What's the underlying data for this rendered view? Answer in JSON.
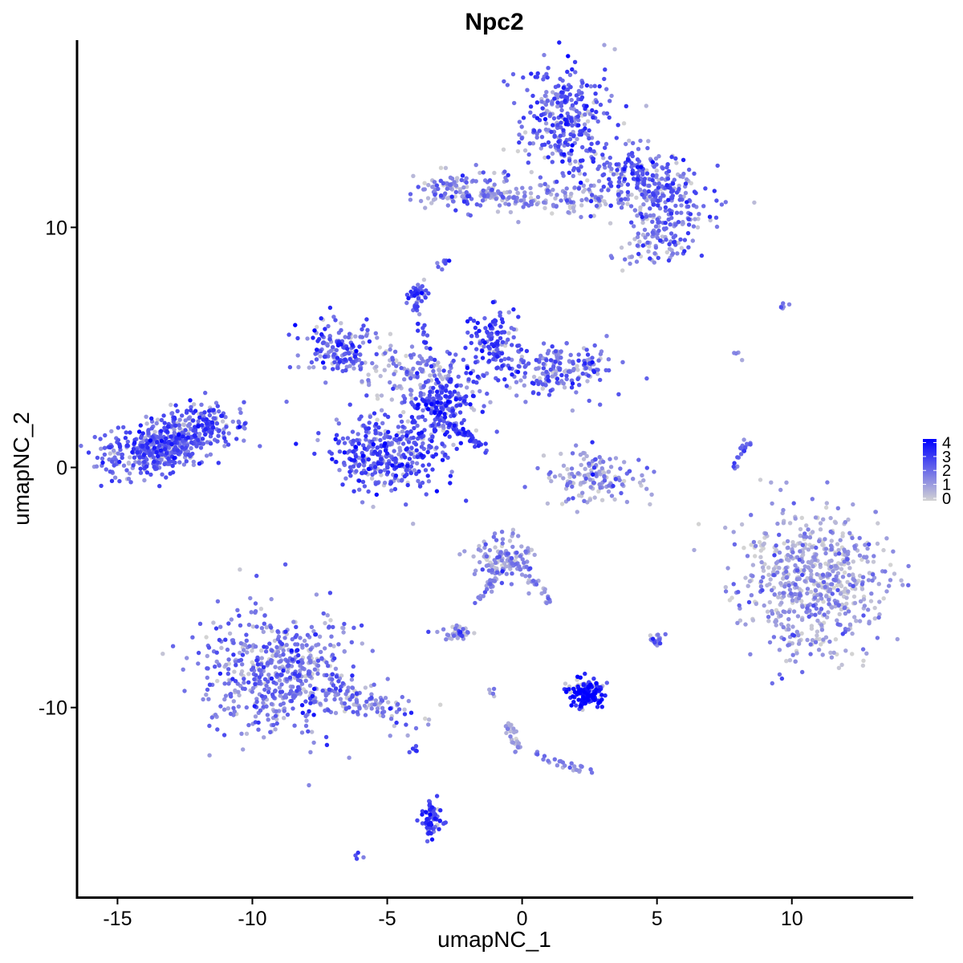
{
  "chart_data": {
    "type": "scatter",
    "title": "Npc2",
    "xlabel": "umapNC_1",
    "ylabel": "umapNC_2",
    "xlim": [
      -16.5,
      14.5
    ],
    "ylim": [
      -17.9,
      17.8
    ],
    "xticks": [
      -15,
      -10,
      -5,
      0,
      5,
      10
    ],
    "yticks": [
      -10,
      0,
      10
    ],
    "tick_labels_x": [
      "-15",
      "-10",
      "-5",
      "0",
      "5",
      "10"
    ],
    "tick_labels_y": [
      "-10",
      "0",
      "10"
    ],
    "color_scale": {
      "low": "#d3d3d3",
      "high": "#0000ff",
      "min": 0,
      "max": 4.2,
      "breaks": [
        0,
        1,
        2,
        3,
        4
      ],
      "labels": [
        "0",
        "1",
        "2",
        "3",
        "4"
      ]
    },
    "grid": false,
    "legend": "right",
    "clusters": [
      {
        "label": "cluster-left",
        "cx": -13.2,
        "cy": 1.0,
        "sx": 1.2,
        "sy": 0.55,
        "rot": 18,
        "n": 520,
        "mean": 2.3
      },
      {
        "label": "cluster-left-tail",
        "cx": -11.7,
        "cy": 1.9,
        "sx": 0.5,
        "sy": 0.4,
        "rot": 0,
        "n": 60,
        "mean": 2.4
      },
      {
        "label": "cluster-top-main",
        "cx": 1.6,
        "cy": 14.5,
        "sx": 0.9,
        "sy": 1.2,
        "rot": 0,
        "n": 300,
        "mean": 2.3
      },
      {
        "label": "cluster-top-right",
        "cx": 4.5,
        "cy": 11.8,
        "sx": 1.3,
        "sy": 0.7,
        "rot": -15,
        "n": 300,
        "mean": 2.2
      },
      {
        "label": "cluster-top-right-lobe",
        "cx": 5.3,
        "cy": 9.8,
        "sx": 0.9,
        "sy": 0.5,
        "rot": 30,
        "n": 120,
        "mean": 1.8
      },
      {
        "label": "cluster-top-left-arm",
        "cx": -2.3,
        "cy": 11.5,
        "sx": 0.9,
        "sy": 0.4,
        "rot": 0,
        "n": 120,
        "mean": 1.6
      },
      {
        "label": "cluster-top-bridge",
        "cx": 1.2,
        "cy": 11.2,
        "sx": 1.8,
        "sy": 0.35,
        "rot": -3,
        "n": 120,
        "mean": 1.1
      },
      {
        "label": "cluster-center-left-arm",
        "cx": -6.8,
        "cy": 5.0,
        "sx": 0.7,
        "sy": 0.6,
        "rot": 0,
        "n": 140,
        "mean": 2.3
      },
      {
        "label": "cluster-center-mid",
        "cx": -4.2,
        "cy": 4.0,
        "sx": 1.0,
        "sy": 0.5,
        "rot": -10,
        "n": 130,
        "mean": 1.2
      },
      {
        "label": "cluster-center-hub",
        "cx": -3.0,
        "cy": 2.6,
        "sx": 0.7,
        "sy": 0.6,
        "rot": 0,
        "n": 200,
        "mean": 2.7
      },
      {
        "label": "cluster-center-lower",
        "cx": -5.0,
        "cy": 0.6,
        "sx": 1.1,
        "sy": 0.85,
        "rot": 0,
        "n": 380,
        "mean": 2.5
      },
      {
        "label": "cluster-center-upper",
        "cx": -1.1,
        "cy": 5.2,
        "sx": 0.6,
        "sy": 0.7,
        "rot": 0,
        "n": 130,
        "mean": 2.6
      },
      {
        "label": "cluster-center-right-arm",
        "cx": 1.5,
        "cy": 4.1,
        "sx": 1.2,
        "sy": 0.5,
        "rot": 10,
        "n": 190,
        "mean": 2.0
      },
      {
        "label": "cluster-center-spur",
        "cx": -3.9,
        "cy": 7.3,
        "sx": 0.2,
        "sy": 0.25,
        "rot": 0,
        "n": 35,
        "mean": 2.7
      },
      {
        "label": "cluster-mid-arc",
        "cx": 2.5,
        "cy": -0.4,
        "sx": 0.9,
        "sy": 0.55,
        "rot": 0,
        "n": 150,
        "mean": 1.3
      },
      {
        "label": "cluster-mid-lower",
        "cx": -0.6,
        "cy": -3.8,
        "sx": 0.6,
        "sy": 0.5,
        "rot": 0,
        "n": 130,
        "mean": 1.3
      },
      {
        "label": "cluster-bottom-left",
        "cx": -9.0,
        "cy": -8.5,
        "sx": 1.3,
        "sy": 1.3,
        "rot": 0,
        "n": 560,
        "mean": 1.8
      },
      {
        "label": "cluster-bottom-left-tail",
        "cx": -5.8,
        "cy": -9.7,
        "sx": 1.1,
        "sy": 0.35,
        "rot": -20,
        "n": 110,
        "mean": 1.7
      },
      {
        "label": "cluster-high",
        "cx": 2.4,
        "cy": -9.4,
        "sx": 0.32,
        "sy": 0.32,
        "rot": 0,
        "n": 140,
        "mean": 3.8
      },
      {
        "label": "cluster-right",
        "cx": 10.8,
        "cy": -4.8,
        "sx": 1.3,
        "sy": 1.6,
        "rot": 10,
        "n": 650,
        "mean": 1.0
      },
      {
        "label": "cluster-bottom-small",
        "cx": -3.3,
        "cy": -14.6,
        "sx": 0.22,
        "sy": 0.35,
        "rot": 0,
        "n": 40,
        "mean": 2.8
      },
      {
        "label": "cluster-small-1",
        "cx": -2.4,
        "cy": -6.9,
        "sx": 0.35,
        "sy": 0.2,
        "rot": 0,
        "n": 35,
        "mean": 1.7
      },
      {
        "label": "cluster-small-2",
        "cx": 5.0,
        "cy": -7.2,
        "sx": 0.12,
        "sy": 0.15,
        "rot": 0,
        "n": 18,
        "mean": 2.2
      }
    ],
    "trails": [
      {
        "label": "trail-streak",
        "x0": -2.6,
        "y0": 1.7,
        "x1": -1.2,
        "y1": 0.7,
        "n": 40,
        "mean": 2.8
      },
      {
        "label": "trail-spur",
        "x0": -4.0,
        "y0": 6.8,
        "x1": -3.2,
        "y1": 4.2,
        "n": 25,
        "mean": 2.6
      },
      {
        "label": "trail-right-small",
        "x0": 7.8,
        "y0": 0.0,
        "x1": 8.4,
        "y1": 1.1,
        "n": 22,
        "mean": 2.0
      },
      {
        "label": "trail-mid-branch",
        "x0": -1.8,
        "y0": -6.0,
        "x1": -0.9,
        "y1": -4.2,
        "n": 25,
        "mean": 1.6
      },
      {
        "label": "trail-right-branch",
        "x0": 0.4,
        "y0": -4.6,
        "x1": 1.1,
        "y1": -5.8,
        "n": 18,
        "mean": 1.4
      },
      {
        "label": "trail-bottom-chain",
        "x0": -0.6,
        "y0": -10.5,
        "x1": -0.1,
        "y1": -11.8,
        "n": 30,
        "mean": 0.9
      },
      {
        "label": "trail-bottom-chain-2",
        "x0": 0.5,
        "y0": -12.0,
        "x1": 2.5,
        "y1": -12.7,
        "n": 25,
        "mean": 1.6
      },
      {
        "label": "trail-bottom-stem",
        "x0": -3.3,
        "y0": -13.7,
        "x1": -3.5,
        "y1": -15.6,
        "n": 25,
        "mean": 2.6
      },
      {
        "label": "trail-top-bridge-2",
        "x0": -1.6,
        "y0": 11.4,
        "x1": 0.4,
        "y1": 11.0,
        "n": 30,
        "mean": 1.6
      },
      {
        "label": "trail-small-top",
        "x0": -3.0,
        "y0": 8.4,
        "x1": -2.8,
        "y1": 8.7,
        "n": 10,
        "mean": 2.3
      },
      {
        "label": "trail-top-right-sparse",
        "x0": 8.0,
        "y0": 4.6,
        "x1": 8.0,
        "y1": 4.9,
        "n": 4,
        "mean": 1.2
      },
      {
        "label": "trail-top-right-sparse-2",
        "x0": 9.6,
        "y0": 6.6,
        "x1": 9.9,
        "y1": 6.9,
        "n": 6,
        "mean": 2.0
      },
      {
        "label": "trail-left-small",
        "x0": -4.0,
        "y0": -11.9,
        "x1": -4.0,
        "y1": -11.6,
        "n": 5,
        "mean": 2.5
      },
      {
        "label": "trail-bottom-dot",
        "x0": -6.1,
        "y0": -16.3,
        "x1": -6.0,
        "y1": -16.2,
        "n": 4,
        "mean": 2.5
      },
      {
        "label": "trail-mid-dots",
        "x0": -1.2,
        "y0": -9.0,
        "x1": -1.0,
        "y1": -9.6,
        "n": 5,
        "mean": 1.0
      }
    ]
  }
}
